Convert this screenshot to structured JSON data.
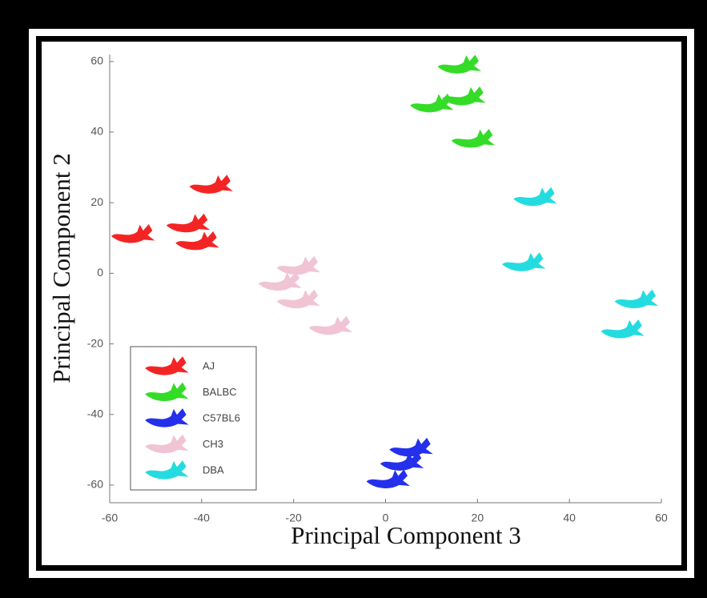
{
  "chart_data": {
    "type": "scatter",
    "xlabel": "Principal Component 3",
    "ylabel": "Principal Component 2",
    "xlim": [
      -60,
      60
    ],
    "ylim": [
      -65,
      62
    ],
    "xticks": [
      -60,
      -40,
      -20,
      0,
      20,
      40,
      60
    ],
    "yticks": [
      -60,
      -40,
      -20,
      0,
      20,
      40,
      60
    ],
    "legend": "lower left",
    "series": [
      {
        "name": "AJ",
        "color": "#f52424",
        "x": [
          -38,
          -43,
          -55,
          -41
        ],
        "y": [
          25,
          14,
          11,
          9
        ]
      },
      {
        "name": "BALBC",
        "color": "#34dc28",
        "x": [
          16,
          17,
          10,
          19
        ],
        "y": [
          59,
          50,
          48,
          38
        ]
      },
      {
        "name": "C57BL6",
        "color": "#2430ec",
        "x": [
          5.5,
          3.5,
          0.5
        ],
        "y": [
          -49.5,
          -53.5,
          -58.5
        ]
      },
      {
        "name": "CH3",
        "color": "#f0c4d4",
        "x": [
          -19,
          -23,
          -19,
          -12
        ],
        "y": [
          2,
          -2.5,
          -7.5,
          -15
        ]
      },
      {
        "name": "DBA",
        "color": "#24dce0",
        "x": [
          32.5,
          30,
          54.5,
          51.5
        ],
        "y": [
          21.5,
          3,
          -7.5,
          -16
        ]
      }
    ]
  }
}
